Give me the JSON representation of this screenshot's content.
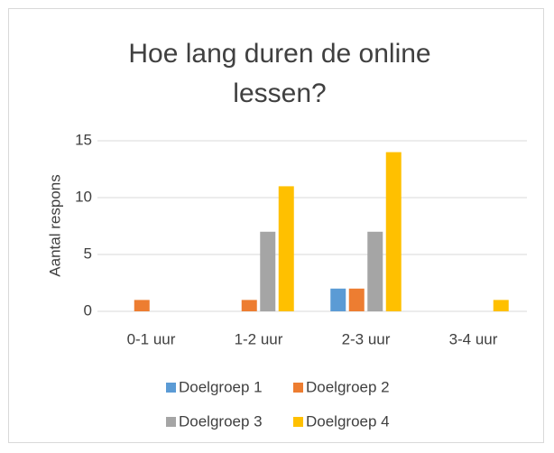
{
  "chart_data": {
    "type": "bar",
    "title": "Hoe lang duren de online lessen?",
    "y_label": "Aantal respons",
    "categories": [
      "0-1 uur",
      "1-2 uur",
      "2-3 uur",
      "3-4 uur"
    ],
    "series": [
      {
        "name": "Doelgroep 1",
        "color": "#5b9bd5",
        "values": [
          0,
          0,
          2,
          0
        ]
      },
      {
        "name": "Doelgroep 2",
        "color": "#ed7d31",
        "values": [
          1,
          1,
          2,
          0
        ]
      },
      {
        "name": "Doelgroep 3",
        "color": "#a5a5a5",
        "values": [
          0,
          7,
          7,
          0
        ]
      },
      {
        "name": "Doelgroep 4",
        "color": "#ffc000",
        "values": [
          0,
          11,
          14,
          1
        ]
      }
    ],
    "ylim": [
      0,
      15
    ],
    "yticks": [
      0,
      5,
      10,
      15
    ],
    "grid": true,
    "legend": "bottom"
  }
}
